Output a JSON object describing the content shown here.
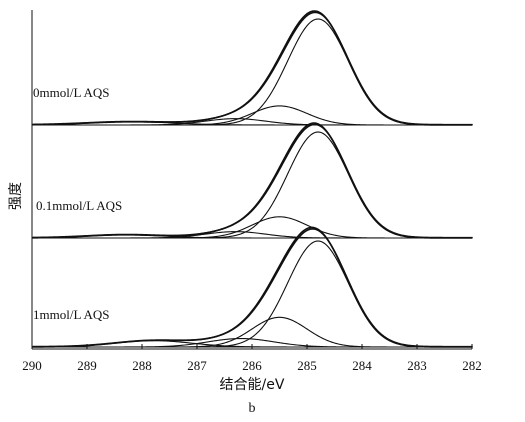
{
  "chart_data": {
    "type": "line",
    "title": "",
    "sublabel": "b",
    "xlabel": "结合能/eV",
    "ylabel": "强度",
    "xlim": [
      290,
      282
    ],
    "x_reversed": true,
    "xticks": [
      290,
      289,
      288,
      287,
      286,
      285,
      284,
      283,
      282
    ],
    "grid": false,
    "legend": "none",
    "panels": [
      {
        "label": "0mmol/L AQS",
        "components": [
          {
            "center": 284.8,
            "height": 1.0,
            "sigma": 0.55
          },
          {
            "center": 285.5,
            "height": 0.18,
            "sigma": 0.5
          },
          {
            "center": 286.3,
            "height": 0.06,
            "sigma": 0.55
          },
          {
            "center": 288.2,
            "height": 0.03,
            "sigma": 0.8
          }
        ]
      },
      {
        "label": "0.1mmol/L AQS",
        "components": [
          {
            "center": 284.8,
            "height": 1.0,
            "sigma": 0.55
          },
          {
            "center": 285.5,
            "height": 0.2,
            "sigma": 0.5
          },
          {
            "center": 286.3,
            "height": 0.06,
            "sigma": 0.55
          },
          {
            "center": 288.3,
            "height": 0.03,
            "sigma": 0.7
          }
        ]
      },
      {
        "label": "1mmol/L AQS",
        "components": [
          {
            "center": 284.8,
            "height": 1.0,
            "sigma": 0.55
          },
          {
            "center": 285.5,
            "height": 0.28,
            "sigma": 0.5
          },
          {
            "center": 286.2,
            "height": 0.08,
            "sigma": 0.6
          },
          {
            "center": 287.8,
            "height": 0.06,
            "sigma": 0.7
          }
        ]
      }
    ]
  }
}
